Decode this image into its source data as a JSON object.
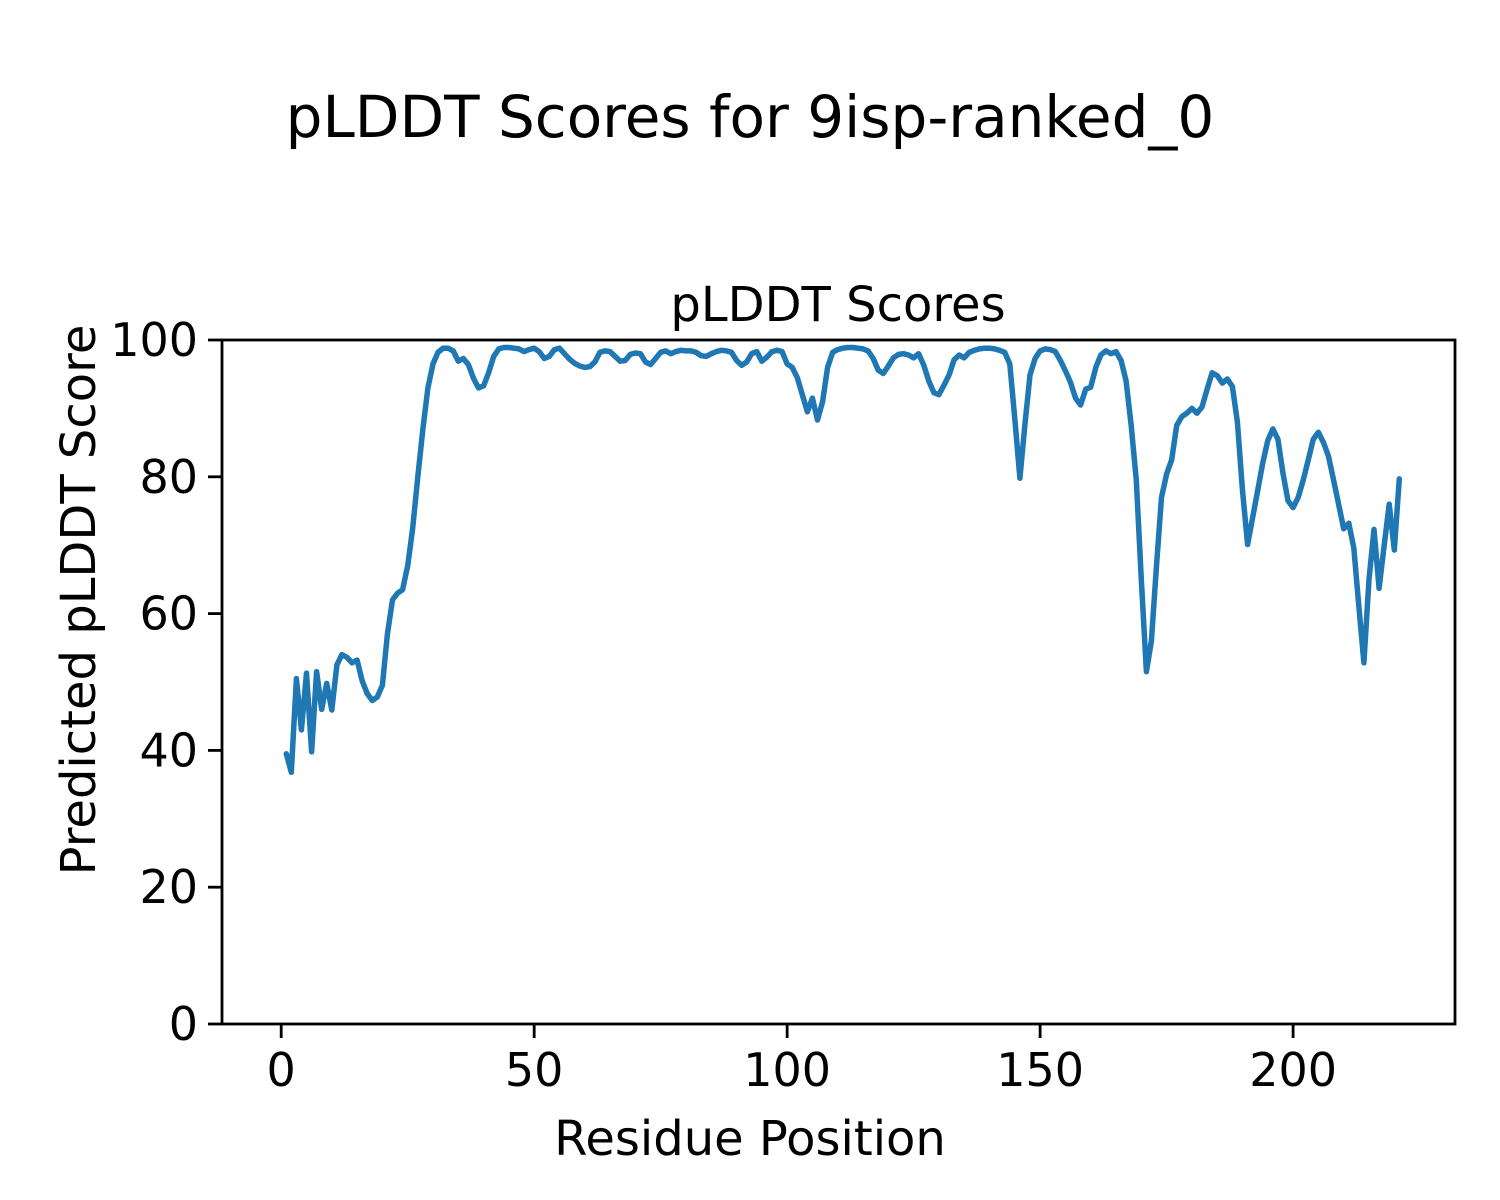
{
  "figure": {
    "suptitle": "pLDDT Scores for 9isp-ranked_0"
  },
  "chart_data": {
    "type": "line",
    "title": "pLDDT Scores",
    "suptitle": "pLDDT Scores for 9isp-ranked_0",
    "xlabel": "Residue Position",
    "ylabel": "Predicted pLDDT Score",
    "xlim": [
      -11.7,
      232
    ],
    "ylim": [
      0,
      100
    ],
    "xticks": [
      0,
      50,
      100,
      150,
      200
    ],
    "yticks": [
      0,
      20,
      40,
      60,
      80,
      100
    ],
    "grid": false,
    "legend": "none",
    "line_color": "#1f77b4",
    "x_start": 1,
    "x_step": 1,
    "series_name": "pLDDT",
    "values": [
      39.5,
      36.8,
      50.5,
      43.0,
      51.3,
      39.8,
      51.5,
      46.0,
      49.8,
      45.9,
      52.5,
      54.0,
      53.6,
      52.8,
      53.2,
      50.2,
      48.3,
      47.3,
      47.8,
      49.5,
      57.0,
      62.0,
      63.0,
      63.5,
      67.0,
      72.5,
      80.0,
      87.0,
      93.0,
      96.5,
      98.2,
      98.8,
      98.8,
      98.4,
      96.9,
      97.3,
      96.4,
      94.4,
      93.0,
      93.3,
      95.2,
      97.6,
      98.7,
      98.9,
      98.9,
      98.8,
      98.7,
      98.3,
      98.6,
      98.8,
      98.3,
      97.3,
      97.6,
      98.6,
      98.8,
      98.0,
      97.2,
      96.6,
      96.2,
      96.0,
      96.1,
      96.8,
      98.2,
      98.4,
      98.3,
      97.6,
      96.9,
      97.0,
      97.9,
      98.1,
      98.0,
      96.8,
      96.4,
      97.3,
      98.2,
      98.4,
      98.0,
      98.3,
      98.5,
      98.4,
      98.4,
      98.2,
      97.7,
      97.6,
      98.0,
      98.3,
      98.5,
      98.4,
      98.2,
      97.0,
      96.3,
      96.8,
      98.0,
      98.3,
      96.9,
      97.5,
      98.3,
      98.5,
      98.3,
      96.5,
      96.0,
      94.5,
      92.0,
      89.5,
      91.5,
      88.3,
      91.0,
      96.0,
      98.2,
      98.6,
      98.8,
      98.9,
      98.9,
      98.8,
      98.7,
      98.4,
      97.3,
      95.6,
      95.1,
      96.2,
      97.4,
      97.9,
      98.0,
      97.8,
      97.4,
      98.0,
      96.3,
      94.0,
      92.3,
      92.0,
      93.4,
      94.9,
      97.1,
      97.8,
      97.4,
      98.2,
      98.5,
      98.7,
      98.8,
      98.8,
      98.7,
      98.5,
      98.2,
      96.5,
      88.5,
      79.8,
      87.6,
      94.9,
      97.3,
      98.4,
      98.7,
      98.6,
      98.3,
      97.0,
      95.5,
      93.8,
      91.5,
      90.5,
      92.8,
      93.1,
      96.0,
      97.8,
      98.4,
      98.0,
      98.3,
      97.0,
      94.0,
      87.5,
      79.5,
      65.0,
      51.5,
      56.0,
      67.0,
      77.0,
      80.4,
      82.5,
      87.5,
      88.8,
      89.3,
      90.0,
      89.3,
      90.2,
      92.8,
      95.2,
      94.8,
      93.7,
      94.3,
      93.2,
      88.0,
      78.0,
      70.1,
      74.0,
      78.0,
      82.0,
      85.3,
      87.0,
      85.5,
      80.5,
      76.5,
      75.5,
      77.0,
      79.5,
      82.5,
      85.5,
      86.5,
      85.0,
      83.0,
      79.5,
      76.0,
      72.4,
      73.2,
      69.6,
      61.0,
      52.8,
      65.0,
      72.3,
      63.7,
      70.0,
      76.0,
      69.3,
      79.7
    ]
  }
}
